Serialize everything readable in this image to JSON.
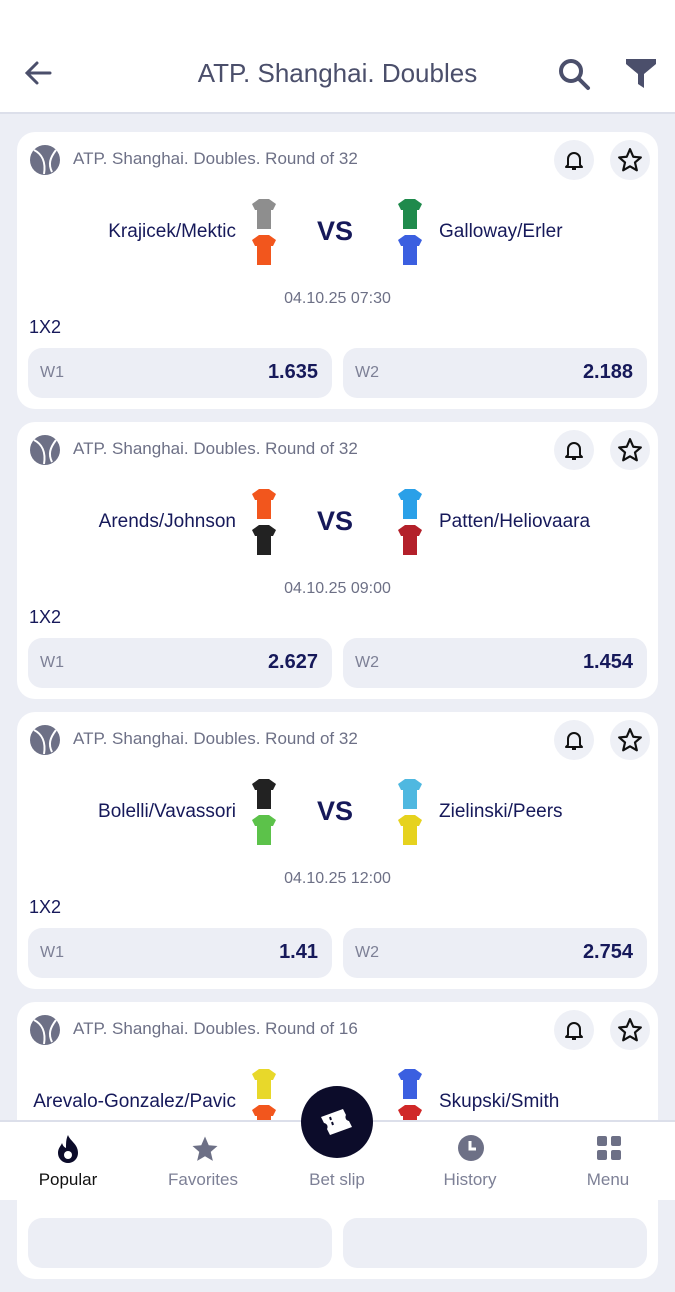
{
  "header": {
    "title": "ATP. Shanghai. Doubles"
  },
  "matches": [
    {
      "league": "ATP. Shanghai. Doubles. Round of 32",
      "team1": "Krajicek/Mektic",
      "team2": "Galloway/Erler",
      "vs": "VS",
      "datetime": "04.10.25 07:30",
      "market": "1X2",
      "w1_label": "W1",
      "w1": "1.635",
      "w2_label": "W2",
      "w2": "2.188",
      "jerseys": [
        "#8e8e8e",
        "#f2561d",
        "#1f8a4c",
        "#3b5fe0"
      ]
    },
    {
      "league": "ATP. Shanghai. Doubles. Round of 32",
      "team1": "Arends/Johnson",
      "team2": "Patten/Heliovaara",
      "vs": "VS",
      "datetime": "04.10.25 09:00",
      "market": "1X2",
      "w1_label": "W1",
      "w1": "2.627",
      "w2_label": "W2",
      "w2": "1.454",
      "jerseys": [
        "#f2561d",
        "#222222",
        "#2aa0e8",
        "#b3202a"
      ]
    },
    {
      "league": "ATP. Shanghai. Doubles. Round of 32",
      "team1": "Bolelli/Vavassori",
      "team2": "Zielinski/Peers",
      "vs": "VS",
      "datetime": "04.10.25 12:00",
      "market": "1X2",
      "w1_label": "W1",
      "w1": "1.41",
      "w2_label": "W2",
      "w2": "2.754",
      "jerseys": [
        "#222222",
        "#5cc24a",
        "#4fb8e0",
        "#e6d21e"
      ]
    },
    {
      "league": "ATP. Shanghai. Doubles. Round of 16",
      "team1": "Arevalo-Gonzalez/Pavic",
      "team2": "Skupski/Smith",
      "vs": "VS",
      "datetime": "",
      "market": "",
      "w1_label": "",
      "w1": "",
      "w2_label": "",
      "w2": "",
      "jerseys": [
        "#e8d82a",
        "#f2561d",
        "#3b5fe0",
        "#d02828"
      ]
    }
  ],
  "nav": {
    "popular": "Popular",
    "favorites": "Favorites",
    "betslip": "Bet slip",
    "history": "History",
    "menu": "Menu"
  },
  "colors": {
    "accent": "#16195a",
    "background": "#eceef5"
  }
}
